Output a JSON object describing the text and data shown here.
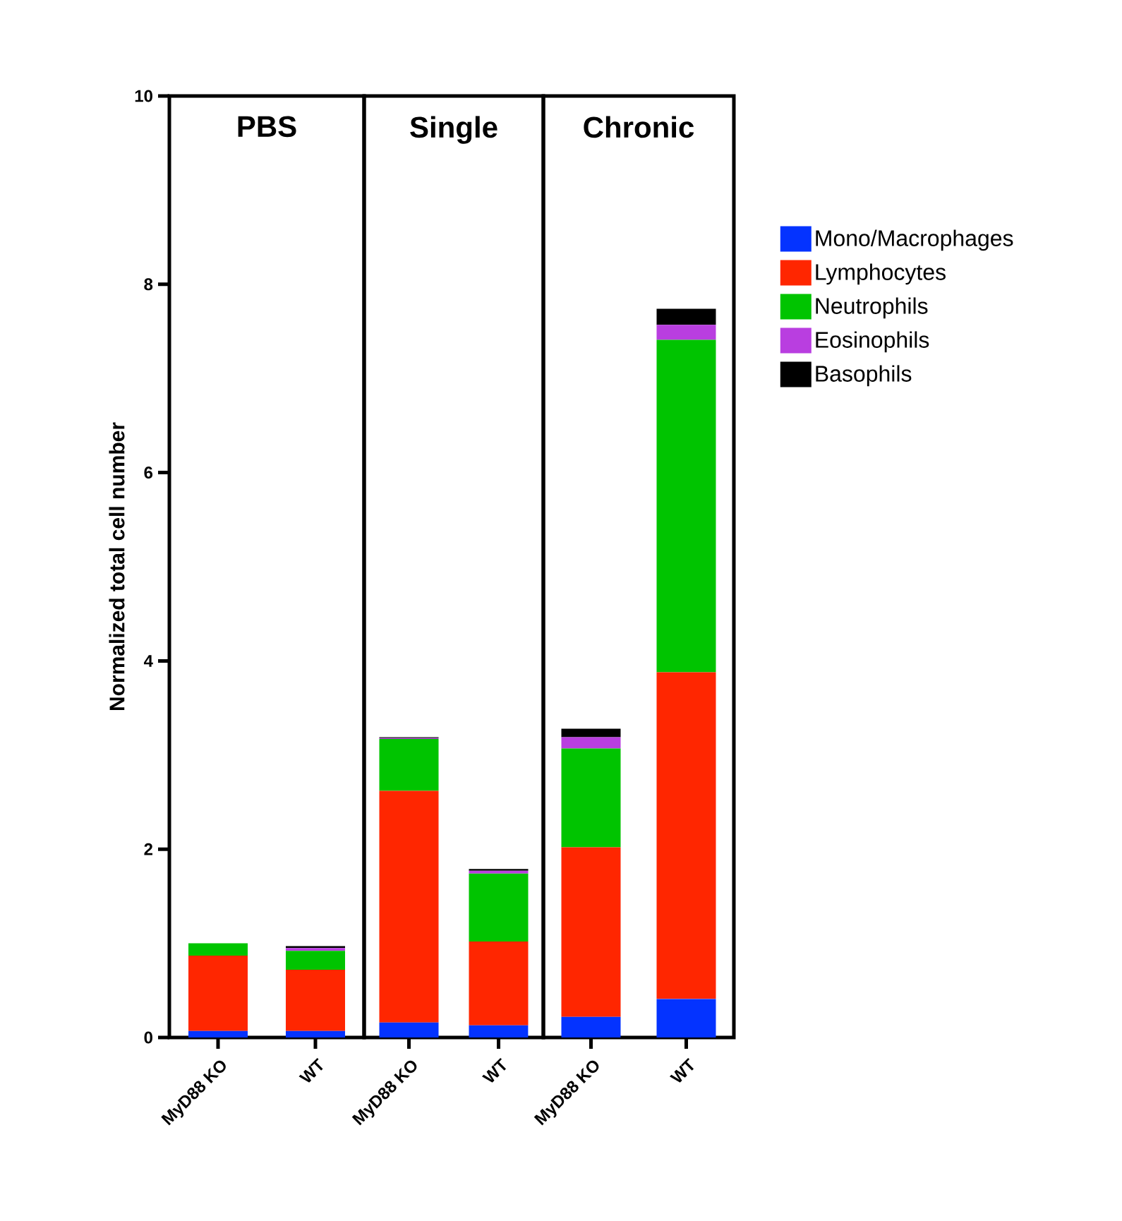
{
  "chart_data": [
    {
      "type": "bar",
      "title": "PBS",
      "ylabel": "Normalized  total cell number",
      "stacked": true,
      "categories": [
        "MyD88 KO",
        "WT"
      ],
      "ylim": [
        0,
        10
      ],
      "yticks": [
        0,
        2,
        4,
        6,
        8,
        10
      ],
      "series": [
        {
          "color": "#0433ff",
          "values": [
            0.07,
            0.07
          ]
        },
        {
          "color": "#ff2600",
          "values": [
            0.8,
            0.65
          ]
        },
        {
          "color": "#00c400",
          "values": [
            0.13,
            0.2
          ]
        },
        {
          "color": "#b93ee0",
          "values": [
            0.0,
            0.03
          ]
        },
        {
          "color": "#000000",
          "values": [
            0.0,
            0.02
          ]
        }
      ]
    },
    {
      "type": "bar",
      "title": "Single",
      "stacked": true,
      "categories": [
        "MyD88 KO",
        "WT"
      ],
      "ylim": [
        0,
        10
      ],
      "tick_labels": "x",
      "series": [
        {
          "color": "#0433ff",
          "values": [
            0.16,
            0.13
          ]
        },
        {
          "color": "#ff2600",
          "values": [
            2.46,
            0.89
          ]
        },
        {
          "color": "#00c400",
          "values": [
            0.55,
            0.72
          ]
        },
        {
          "color": "#b93ee0",
          "values": [
            0.01,
            0.03
          ]
        },
        {
          "color": "#000000",
          "values": [
            0.01,
            0.02
          ]
        }
      ]
    },
    {
      "type": "bar",
      "title": "Chronic",
      "stacked": true,
      "categories": [
        "MyD88 KO",
        "WT"
      ],
      "ylim": [
        0,
        10
      ],
      "tick_labels": "x",
      "legend": "right",
      "series": [
        {
          "name": "Mono/Macrophages",
          "color": "#0433ff",
          "values": [
            0.22,
            0.41
          ]
        },
        {
          "name": "Lymphocytes",
          "color": "#ff2600",
          "values": [
            1.8,
            3.47
          ]
        },
        {
          "name": "Neutrophils",
          "color": "#00c400",
          "values": [
            1.05,
            3.53
          ]
        },
        {
          "name": "Eosinophils",
          "color": "#b93ee0",
          "values": [
            0.12,
            0.16
          ]
        },
        {
          "name": "Basophils",
          "color": "#000000",
          "values": [
            0.09,
            0.17
          ]
        }
      ]
    }
  ]
}
